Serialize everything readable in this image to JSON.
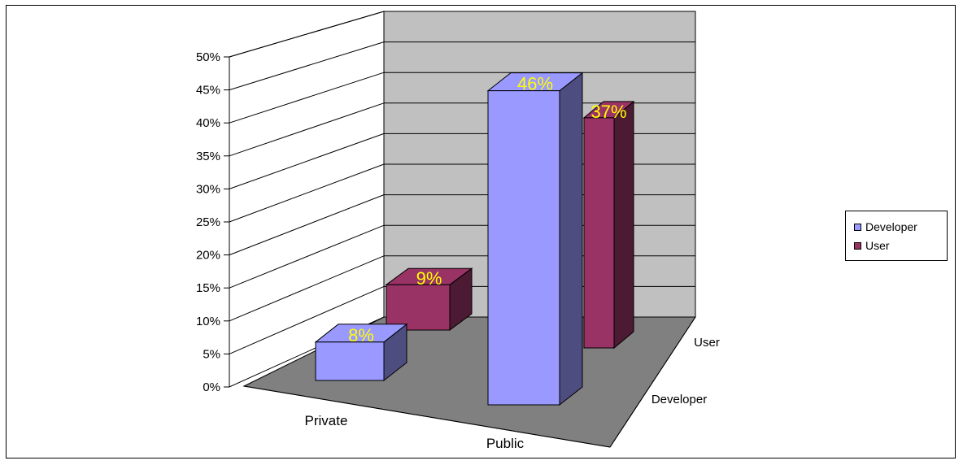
{
  "chart_data": {
    "type": "bar",
    "categories": [
      "Private",
      "Public"
    ],
    "depth_categories": [
      "Developer",
      "User"
    ],
    "series": [
      {
        "name": "Developer",
        "values": [
          8,
          46
        ],
        "color": "#9999FF"
      },
      {
        "name": "User",
        "values": [
          9,
          37
        ],
        "color": "#993366"
      }
    ],
    "data_labels": {
      "Developer": [
        "8%",
        "46%"
      ],
      "User": [
        "9%",
        "37%"
      ]
    },
    "y_ticks": [
      "0%",
      "5%",
      "10%",
      "15%",
      "20%",
      "25%",
      "30%",
      "35%",
      "40%",
      "45%",
      "50%"
    ],
    "ylim": [
      0,
      50
    ],
    "grid": true,
    "legend_position": "right",
    "data_label_color": "#FFFF00",
    "wall_color": "#C0C0C0",
    "floor_color": "#808080"
  },
  "legend": {
    "items": [
      {
        "label": "Developer",
        "color": "#9999FF"
      },
      {
        "label": "User",
        "color": "#993366"
      }
    ]
  }
}
